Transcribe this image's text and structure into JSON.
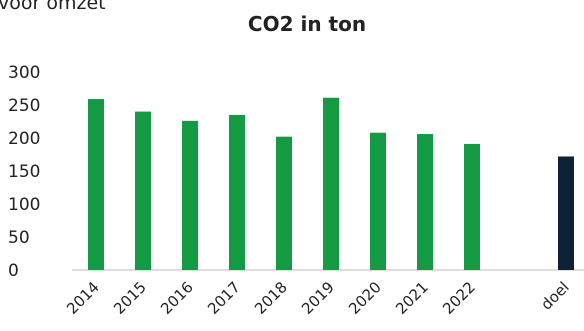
{
  "header": {
    "cut_text": "voor omzet"
  },
  "chart_data": {
    "type": "bar",
    "title": "CO2 in ton",
    "categories": [
      "2014",
      "2015",
      "2016",
      "2017",
      "2018",
      "2019",
      "2020",
      "2021",
      "2022",
      "",
      "doel"
    ],
    "values": [
      259,
      240,
      226,
      235,
      202,
      261,
      208,
      206,
      191,
      null,
      172
    ],
    "ylim": [
      0,
      300
    ],
    "yticks": [
      0,
      50,
      100,
      150,
      200,
      250,
      300
    ],
    "grid": false,
    "colors": {
      "actual": "#139a43",
      "target": "#0e2233"
    }
  }
}
